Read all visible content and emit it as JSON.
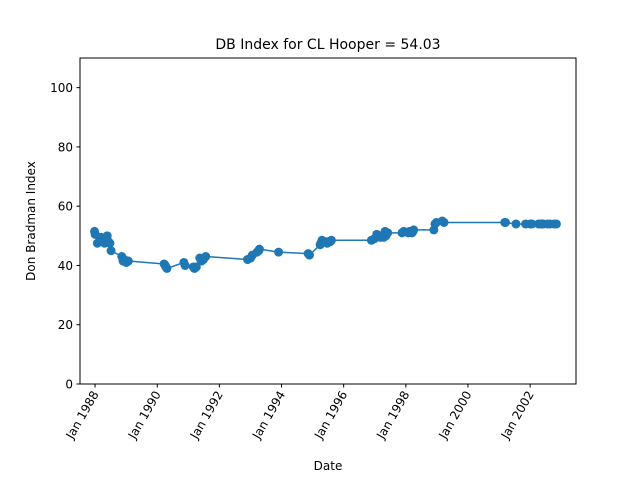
{
  "chart_data": {
    "type": "line",
    "title": "DB Index for CL Hooper = 54.03",
    "xlabel": "Date",
    "ylabel": "Don Bradman Index",
    "xlim": [
      "1987-07-08",
      "2003-06-24"
    ],
    "ylim": [
      0,
      110
    ],
    "x_ticks": [
      "Jan 1988",
      "Jan 1990",
      "Jan 1992",
      "Jan 1994",
      "Jan 1996",
      "Jan 1998",
      "Jan 2000",
      "Jan 2002"
    ],
    "y_ticks": [
      0,
      20,
      40,
      60,
      80,
      100
    ],
    "grid": false,
    "color": "#1f77b4",
    "series": [
      {
        "x": [
          "1987-12-26",
          "1988-01-02",
          "1988-01-28",
          "1988-03-12",
          "1988-04-02",
          "1988-04-22",
          "1988-05-06",
          "1988-05-23",
          "1988-06-09",
          "1988-06-23",
          "1988-07-07",
          "1988-11-10",
          "1988-11-25",
          "1988-12-10",
          "1989-01-02",
          "1989-01-26",
          "1990-03-23",
          "1990-04-05",
          "1990-04-12",
          "1990-04-25",
          "1990-11-10",
          "1990-11-24",
          "1991-03-01",
          "1991-03-14",
          "1991-04-05",
          "1991-05-16",
          "1991-06-04",
          "1991-06-28",
          "1991-07-25",
          "1992-11-27",
          "1993-01-02",
          "1993-01-23",
          "1993-03-19",
          "1993-04-08",
          "1993-04-16",
          "1993-11-27",
          "1994-11-10",
          "1994-11-25",
          "1995-03-31",
          "1995-04-08",
          "1995-04-21",
          "1995-06-08",
          "1995-06-22",
          "1995-07-06",
          "1995-07-27",
          "1995-08-10",
          "1996-11-22",
          "1996-12-26",
          "1997-01-24",
          "1997-03-06",
          "1997-03-27",
          "1997-04-17",
          "1997-05-01",
          "1997-05-12",
          "1997-06-02",
          "1997-11-17",
          "1997-12-07",
          "1998-01-29",
          "1998-02-13",
          "1998-03-05",
          "1998-03-15",
          "1998-03-27",
          "1998-04-03",
          "1998-11-26",
          "1998-12-10",
          "1998-12-26",
          "1999-03-05",
          "1999-03-26",
          "2001-03-09",
          "2001-03-17",
          "2001-07-19",
          "2001-11-08",
          "2002-01-02",
          "2002-01-22",
          "2002-04-11",
          "2002-05-02",
          "2002-05-10",
          "2002-05-24",
          "2002-06-07",
          "2002-07-25",
          "2002-08-22",
          "2002-10-09",
          "2002-11-06"
        ],
        "y": [
          51.5,
          50.5,
          47.5,
          49.5,
          48.5,
          47.5,
          49.0,
          50.0,
          48.0,
          47.5,
          45.0,
          43.0,
          41.5,
          42.0,
          41.0,
          41.5,
          40.5,
          40.0,
          39.5,
          39.0,
          41.0,
          40.0,
          39.5,
          39.0,
          39.5,
          42.5,
          41.5,
          42.0,
          43.0,
          42.0,
          42.5,
          43.5,
          44.5,
          45.0,
          45.5,
          44.5,
          44.0,
          43.5,
          47.0,
          47.5,
          48.5,
          48.0,
          47.5,
          48.0,
          48.0,
          48.5,
          48.5,
          49.0,
          50.5,
          49.5,
          50.0,
          49.5,
          51.5,
          50.0,
          51.0,
          51.0,
          51.5,
          51.0,
          51.5,
          51.5,
          51.0,
          51.5,
          52.0,
          52.0,
          54.0,
          54.5,
          55.0,
          54.5,
          54.5,
          54.5,
          54.0,
          54.0,
          54.0,
          54.0,
          54.0,
          54.0,
          54.0,
          54.0,
          54.0,
          54.0,
          54.0,
          54.0,
          54.0
        ]
      }
    ]
  }
}
